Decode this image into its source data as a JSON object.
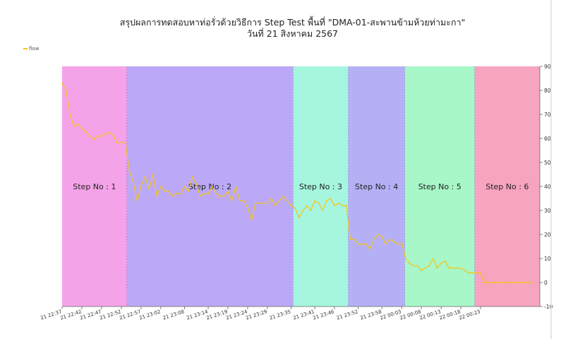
{
  "chart_data": {
    "type": "line",
    "title": "สรุปผลการทดสอบหาท่อรั่วด้วยวิธีการ Step Test พื้นที่ \"DMA-01-สะพานข้ามห้วยท่ามะกา\"",
    "subtitle": "วันที่ 21 สิงหาคม 2567",
    "legend": {
      "position": "top-left",
      "entries": [
        "flow"
      ]
    },
    "xlabel": "",
    "ylabel": "",
    "ylim": [
      -10,
      90
    ],
    "yticks": [
      -10,
      0,
      10,
      20,
      30,
      40,
      50,
      60,
      70,
      80,
      90
    ],
    "y_axis_side": "right",
    "xlim_minutes": [
      0,
      121
    ],
    "xticks": [
      {
        "label": "21 22:37",
        "t": 0
      },
      {
        "label": "21 22:42",
        "t": 5
      },
      {
        "label": "21 22:47",
        "t": 10
      },
      {
        "label": "21 22:52",
        "t": 15
      },
      {
        "label": "21 22:57",
        "t": 20
      },
      {
        "label": "21 23:02",
        "t": 25
      },
      {
        "label": "21 23:08",
        "t": 31
      },
      {
        "label": "21 23:14",
        "t": 37
      },
      {
        "label": "21 23:19",
        "t": 42
      },
      {
        "label": "21 23:24",
        "t": 47
      },
      {
        "label": "21 23:29",
        "t": 52
      },
      {
        "label": "21 23:35",
        "t": 58
      },
      {
        "label": "21 23:41",
        "t": 64
      },
      {
        "label": "21 23:46",
        "t": 69
      },
      {
        "label": "21 23:52",
        "t": 75
      },
      {
        "label": "21 23:58",
        "t": 81
      },
      {
        "label": "22 00:03",
        "t": 86
      },
      {
        "label": "22 00:08",
        "t": 91
      },
      {
        "label": "22 00:13",
        "t": 96
      },
      {
        "label": "22 00:18",
        "t": 101
      },
      {
        "label": "22 00:23",
        "t": 106
      }
    ],
    "steps": [
      {
        "label": "Step No : 1",
        "start": 0,
        "end": 16.4,
        "color": "#f5a3e8"
      },
      {
        "label": "Step No : 2",
        "start": 16.4,
        "end": 58.5,
        "color": "#bba8f7"
      },
      {
        "label": "Step No : 3",
        "start": 58.5,
        "end": 72.5,
        "color": "#a6f5df"
      },
      {
        "label": "Step No : 4",
        "start": 72.5,
        "end": 86.8,
        "color": "#b5b0f5"
      },
      {
        "label": "Step No : 5",
        "start": 86.8,
        "end": 104.5,
        "color": "#a7f7c8"
      },
      {
        "label": "Step No : 6",
        "start": 104.5,
        "end": 121,
        "color": "#f7a4bf"
      }
    ],
    "series": [
      {
        "name": "flow",
        "color": "#f5c518",
        "points": [
          [
            0,
            83
          ],
          [
            1,
            80
          ],
          [
            2,
            70
          ],
          [
            3,
            65
          ],
          [
            4,
            66
          ],
          [
            5,
            64
          ],
          [
            6,
            63
          ],
          [
            7,
            61
          ],
          [
            8,
            59.5
          ],
          [
            9,
            61
          ],
          [
            10,
            61
          ],
          [
            11,
            62
          ],
          [
            12,
            62.5
          ],
          [
            13,
            61
          ],
          [
            14,
            58
          ],
          [
            15,
            58.5
          ],
          [
            16,
            58
          ],
          [
            17,
            47
          ],
          [
            18,
            42
          ],
          [
            19,
            34
          ],
          [
            20,
            40
          ],
          [
            21,
            44
          ],
          [
            22,
            39
          ],
          [
            23,
            45
          ],
          [
            24,
            36
          ],
          [
            25,
            40
          ],
          [
            26,
            38
          ],
          [
            27,
            38
          ],
          [
            28,
            36
          ],
          [
            29,
            37
          ],
          [
            30,
            37
          ],
          [
            31,
            40
          ],
          [
            32,
            38
          ],
          [
            33,
            44
          ],
          [
            34,
            41
          ],
          [
            35,
            36
          ],
          [
            36,
            37
          ],
          [
            37,
            37
          ],
          [
            38,
            40
          ],
          [
            39,
            37
          ],
          [
            40,
            36
          ],
          [
            41,
            36
          ],
          [
            42,
            38
          ],
          [
            43,
            34
          ],
          [
            44,
            40
          ],
          [
            45,
            34
          ],
          [
            46,
            34
          ],
          [
            47,
            31
          ],
          [
            48,
            26
          ],
          [
            49,
            33
          ],
          [
            50,
            33
          ],
          [
            51,
            33
          ],
          [
            52,
            33
          ],
          [
            53,
            35
          ],
          [
            54,
            32
          ],
          [
            55,
            34
          ],
          [
            56,
            36
          ],
          [
            57,
            34
          ],
          [
            58,
            32
          ],
          [
            59,
            31
          ],
          [
            60,
            27
          ],
          [
            61,
            30
          ],
          [
            62,
            32
          ],
          [
            63,
            30
          ],
          [
            64,
            34
          ],
          [
            65,
            33
          ],
          [
            66,
            30
          ],
          [
            67,
            34
          ],
          [
            68,
            35
          ],
          [
            69,
            32
          ],
          [
            70,
            33
          ],
          [
            71,
            32
          ],
          [
            72,
            32
          ],
          [
            73,
            18
          ],
          [
            74,
            18
          ],
          [
            75,
            16
          ],
          [
            76,
            16
          ],
          [
            77,
            16
          ],
          [
            78,
            14
          ],
          [
            79,
            18
          ],
          [
            80,
            20
          ],
          [
            81,
            19
          ],
          [
            82,
            16
          ],
          [
            83,
            18
          ],
          [
            84,
            17
          ],
          [
            85,
            16
          ],
          [
            86,
            16.5
          ],
          [
            87,
            10
          ],
          [
            88,
            8
          ],
          [
            89,
            7
          ],
          [
            90,
            7
          ],
          [
            91,
            5
          ],
          [
            92,
            6
          ],
          [
            93,
            7
          ],
          [
            94,
            10
          ],
          [
            95,
            6
          ],
          [
            96,
            8
          ],
          [
            97,
            9
          ],
          [
            98,
            6
          ],
          [
            99,
            6
          ],
          [
            100,
            6
          ],
          [
            101,
            6
          ],
          [
            102,
            5
          ],
          [
            103,
            4
          ],
          [
            104,
            4
          ],
          [
            105,
            4
          ],
          [
            106,
            4
          ],
          [
            107,
            0
          ],
          [
            108,
            0
          ],
          [
            109,
            0
          ],
          [
            110,
            0
          ],
          [
            111,
            0
          ],
          [
            112,
            0
          ],
          [
            113,
            0
          ],
          [
            114,
            0
          ],
          [
            115,
            0
          ],
          [
            116,
            0
          ],
          [
            117,
            0
          ],
          [
            118,
            0
          ],
          [
            119,
            0
          ]
        ]
      }
    ]
  }
}
